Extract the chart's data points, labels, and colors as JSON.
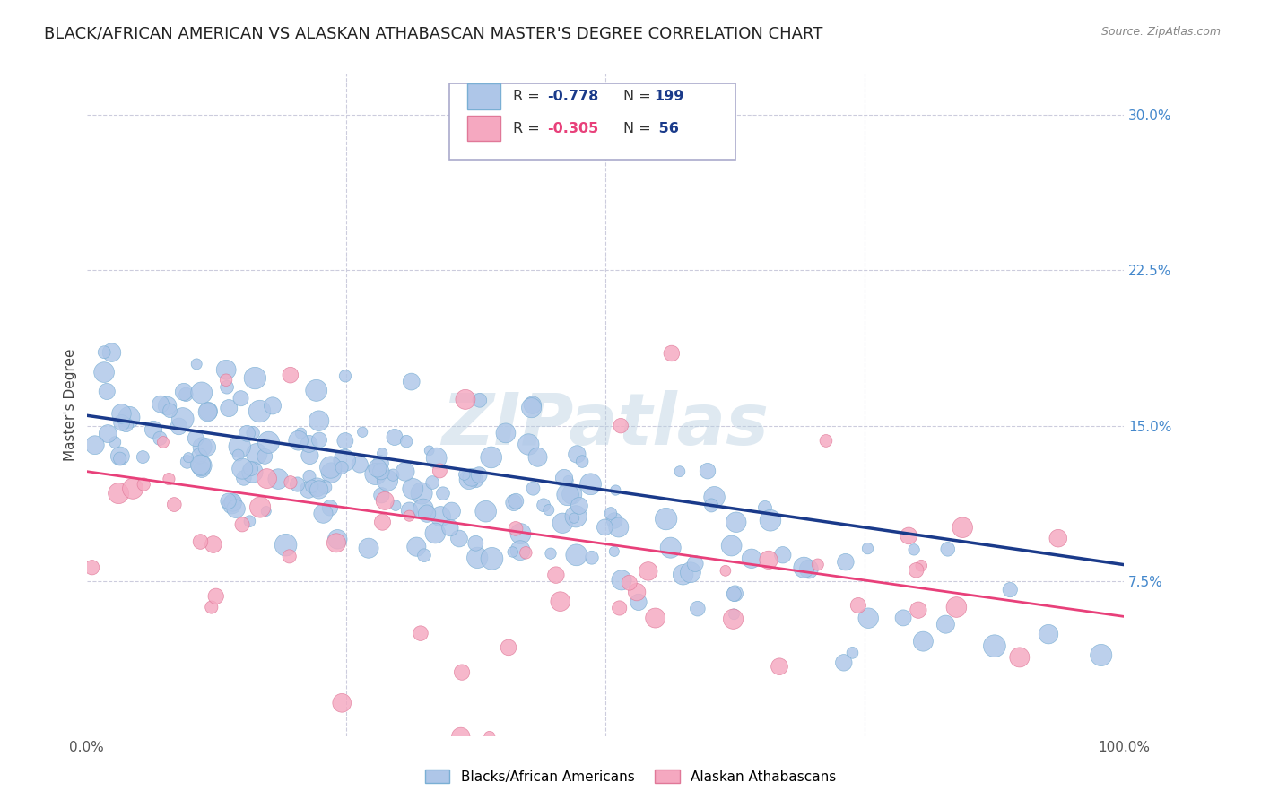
{
  "title": "BLACK/AFRICAN AMERICAN VS ALASKAN ATHABASCAN MASTER'S DEGREE CORRELATION CHART",
  "source": "Source: ZipAtlas.com",
  "ylabel": "Master's Degree",
  "xlabel": "",
  "blue_label": "Blacks/African Americans",
  "pink_label": "Alaskan Athabascans",
  "blue_R": -0.778,
  "blue_N": 199,
  "pink_R": -0.305,
  "pink_N": 56,
  "blue_color": "#aec6e8",
  "blue_edge": "#7aafd4",
  "pink_color": "#f5a8c0",
  "pink_edge": "#e07898",
  "blue_line_color": "#1a3a8a",
  "pink_line_color": "#e8407a",
  "xlim": [
    0.0,
    1.0
  ],
  "ylim": [
    0.0,
    0.32
  ],
  "xticks": [
    0.0,
    0.25,
    0.5,
    0.75,
    1.0
  ],
  "xtick_labels": [
    "0.0%",
    "",
    "",
    "",
    "100.0%"
  ],
  "yticks": [
    0.0,
    0.075,
    0.15,
    0.225,
    0.3
  ],
  "ytick_labels": [
    "",
    "7.5%",
    "15.0%",
    "22.5%",
    "30.0%"
  ],
  "grid_color": "#ccccdd",
  "background_color": "#ffffff",
  "title_fontsize": 13,
  "axis_fontsize": 11,
  "tick_fontsize": 11,
  "watermark": "ZIPatlas",
  "blue_line_start": 0.155,
  "blue_line_end": 0.083,
  "pink_line_start": 0.128,
  "pink_line_end": 0.058,
  "seed_blue": 42,
  "seed_pink": 123
}
